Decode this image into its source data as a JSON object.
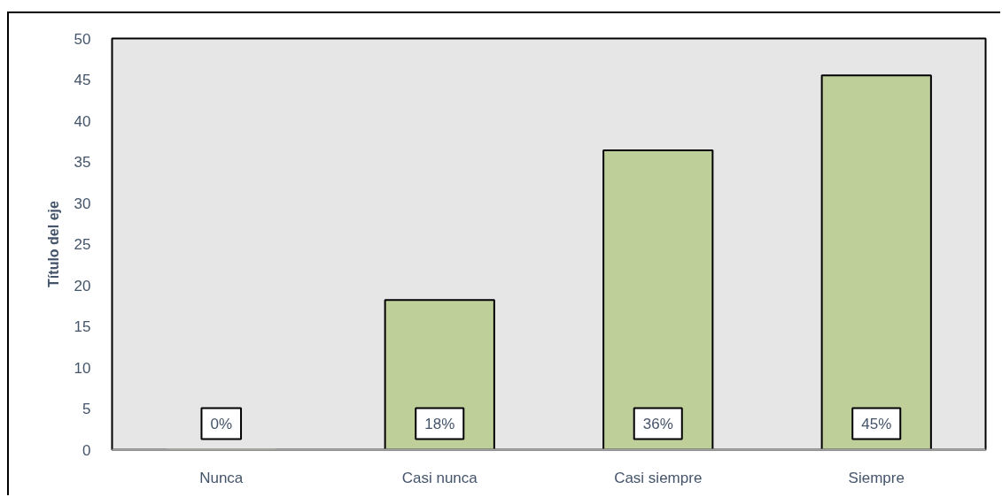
{
  "chart_data": {
    "type": "bar",
    "ylabel": "Título del eje",
    "categories": [
      "Nunca",
      "Casi nunca",
      "Casi siempre",
      "Siempre"
    ],
    "values": [
      0,
      18.2,
      36.4,
      45.5
    ],
    "color": "#bfcf99",
    "value_labels": [
      "0%",
      "18%",
      "36%",
      "45%"
    ],
    "ylim": [
      0,
      50
    ],
    "yticks": [
      0,
      5,
      10,
      15,
      20,
      25,
      30,
      35,
      40,
      45,
      50
    ]
  }
}
